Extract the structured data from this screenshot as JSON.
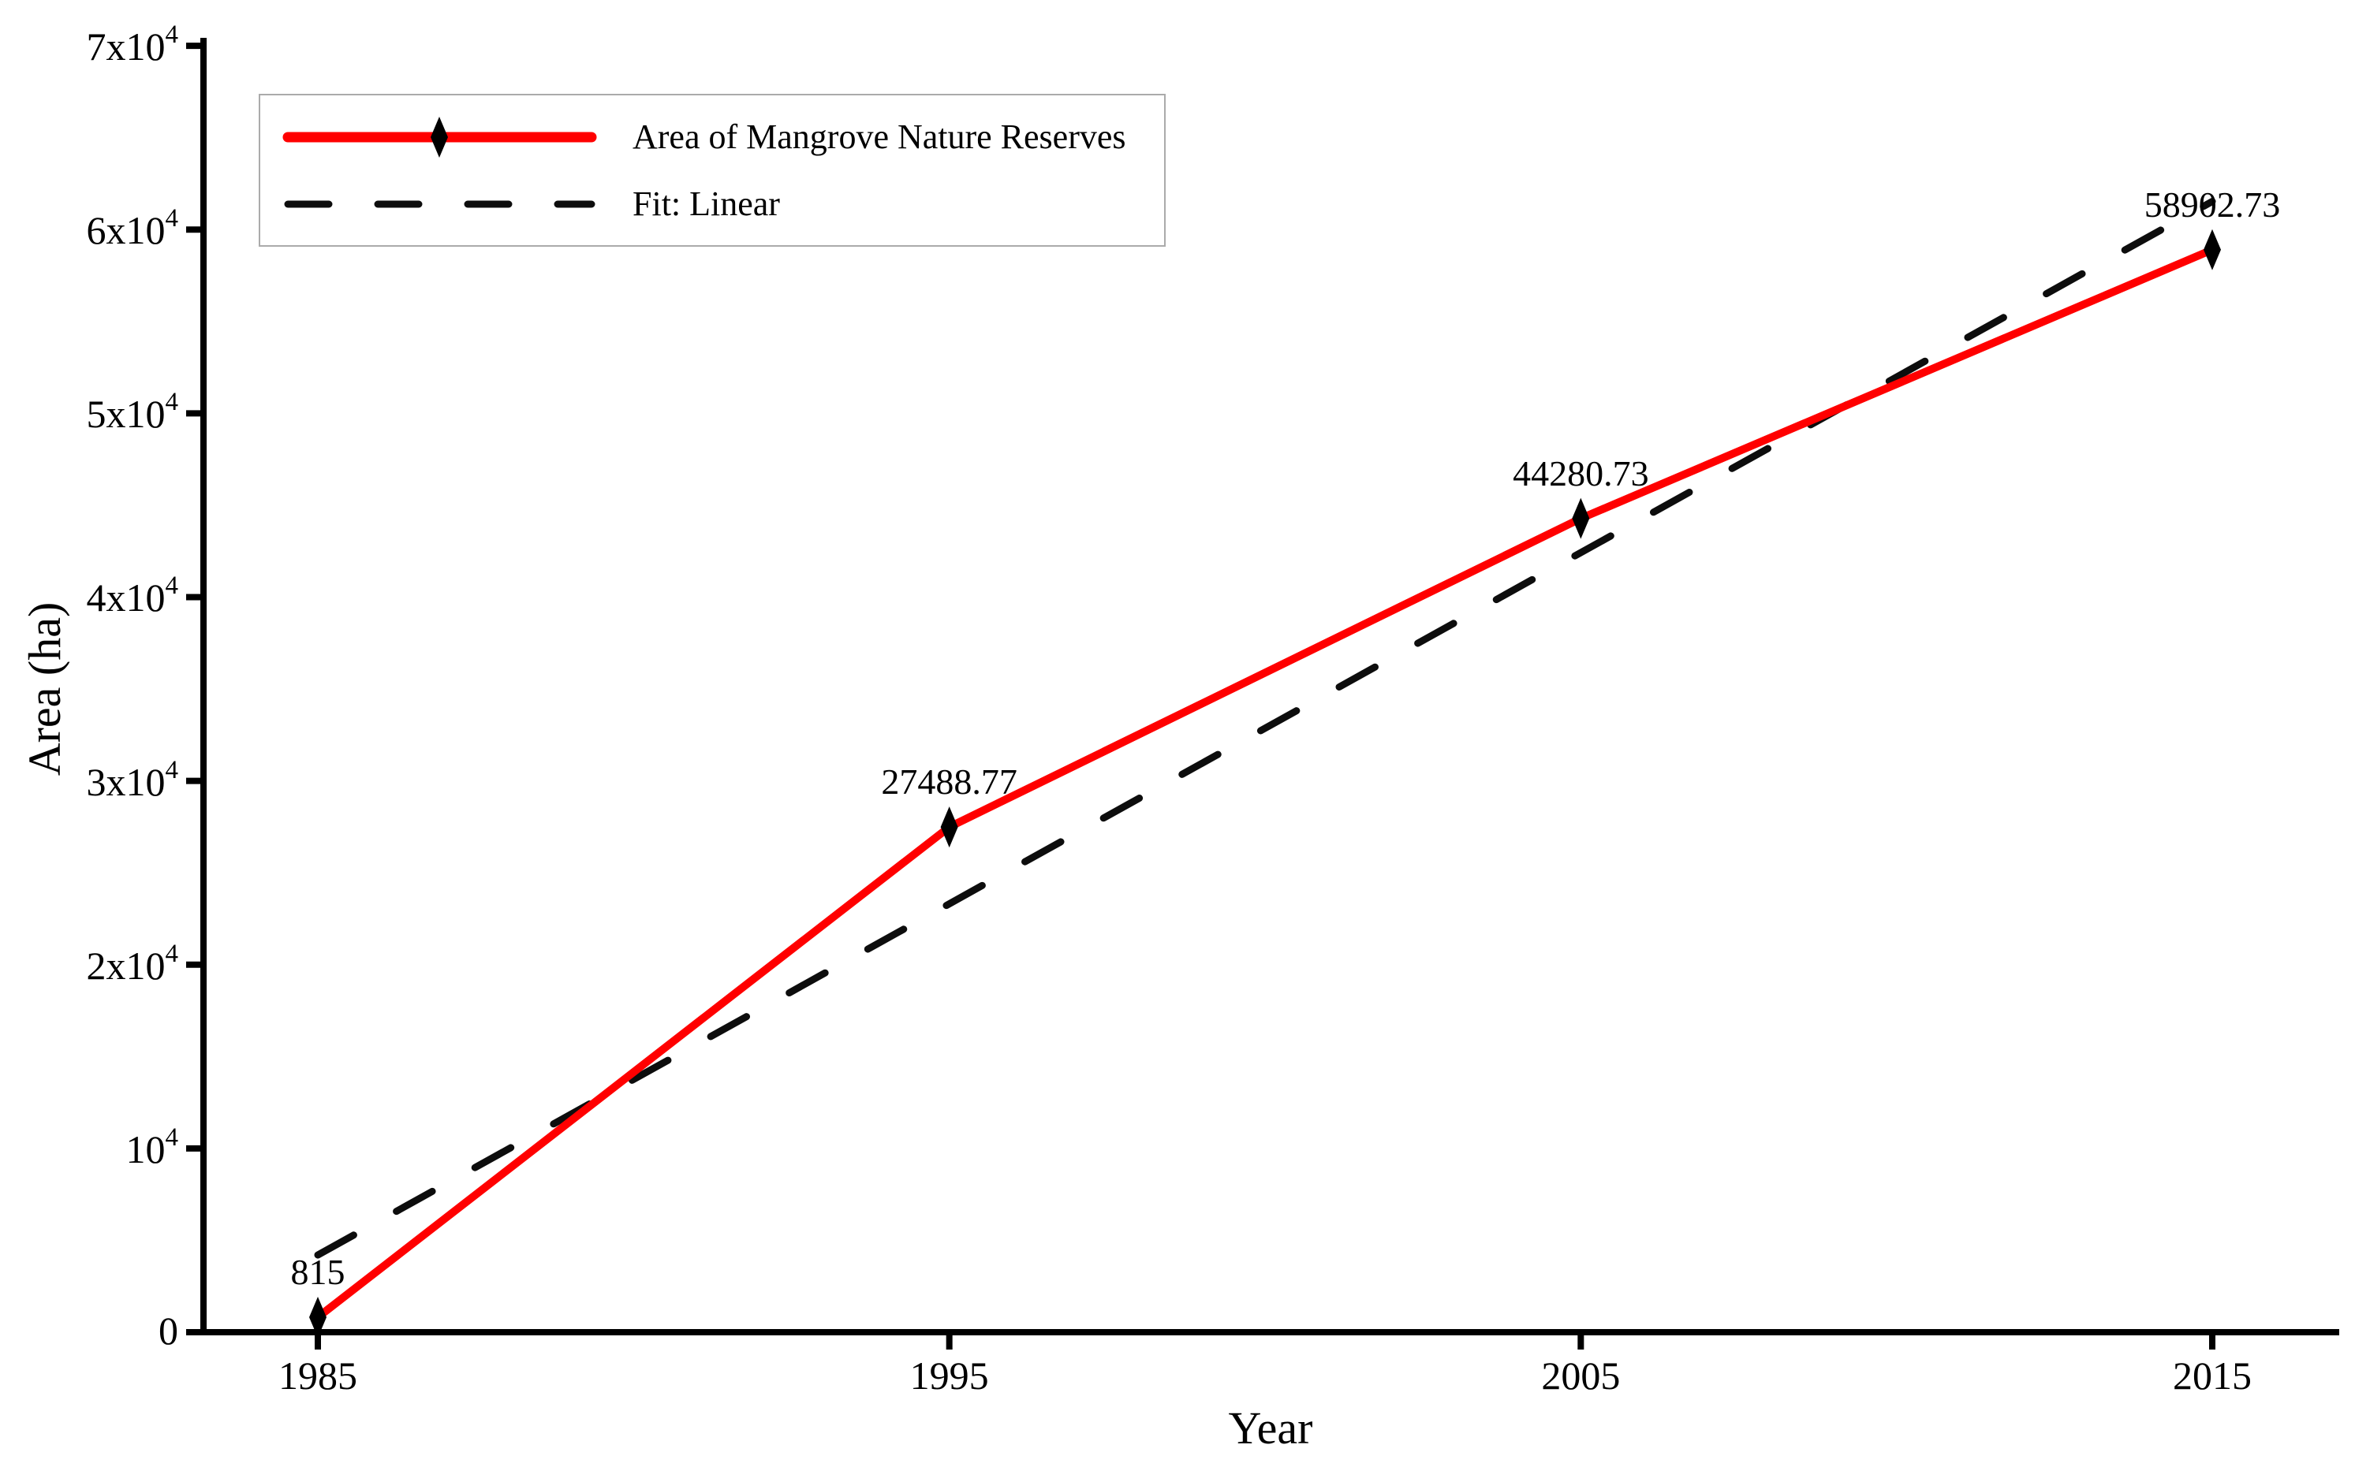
{
  "chart_data": {
    "type": "line",
    "title": "",
    "xlabel": "Year",
    "ylabel": "Area (ha)",
    "x": [
      1985,
      1995,
      2005,
      2015
    ],
    "series": [
      {
        "name": "Area of Mangrove Nature Reserves",
        "values": [
          815,
          27488.77,
          44280.73,
          58902.73
        ],
        "point_labels": [
          "815",
          "27488.77",
          "44280.73",
          "58902.73"
        ],
        "color": "#ff0000",
        "marker": "diamond",
        "marker_color": "#000000",
        "line_style": "solid"
      },
      {
        "name": "Fit: Linear",
        "fit_x": [
          1985,
          2015
        ],
        "fit_y": [
          4200,
          61530
        ],
        "color": "#0d0d0d",
        "line_style": "dashed"
      }
    ],
    "x_ticks": [
      "1985",
      "1995",
      "2005",
      "2015"
    ],
    "y_ticks": [
      {
        "mantissa": "0",
        "exp": ""
      },
      {
        "mantissa": "10",
        "exp": "4"
      },
      {
        "mantissa": "2x10",
        "exp": "4"
      },
      {
        "mantissa": "3x10",
        "exp": "4"
      },
      {
        "mantissa": "4x10",
        "exp": "4"
      },
      {
        "mantissa": "5x10",
        "exp": "4"
      },
      {
        "mantissa": "6x10",
        "exp": "4"
      },
      {
        "mantissa": "7x10",
        "exp": "4"
      }
    ],
    "ylim": [
      0,
      70000
    ],
    "grid": "off",
    "legend_position": "top-left",
    "axis_color": "#000000",
    "legend_border_color": "#ababab"
  }
}
